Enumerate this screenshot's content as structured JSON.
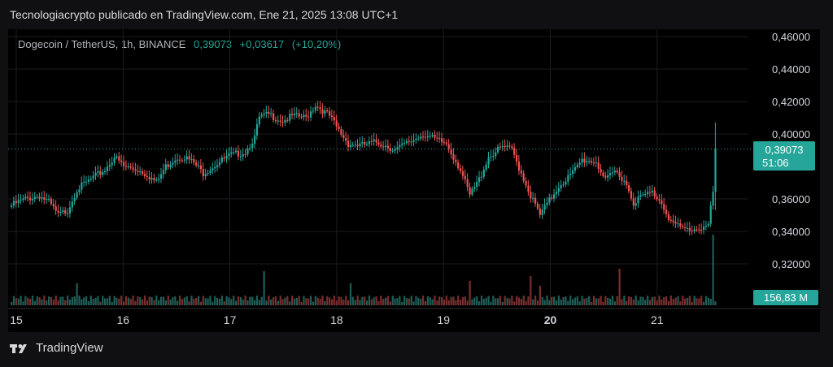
{
  "header": {
    "text": "Tecnologiacrypto publicado en TradingView.com, Ene 21, 2025 13:08 UTC+1"
  },
  "legend": {
    "pair": "Dogecoin / TetherUS, 1h, BINANCE",
    "price": "0,39073",
    "change": "+0,03617",
    "change_pct": "(+10,20%)"
  },
  "price_tag": {
    "value": "0,39073",
    "countdown": "51:06"
  },
  "volume_tag": {
    "value": "156,83 M"
  },
  "footer": {
    "brand": "TradingView"
  },
  "colors": {
    "up": "#26a69a",
    "down": "#ef5350",
    "up_volume": "#1f5e57",
    "down_volume": "#7a2e2e"
  },
  "chart_data": {
    "type": "candlestick",
    "y_axis_ticks": [
      "0,46000",
      "0,44000",
      "0,42000",
      "0,40000",
      "0,36000",
      "0,34000",
      "0,32000"
    ],
    "x_axis_ticks": [
      "15",
      "16",
      "17",
      "18",
      "19",
      "20",
      "21"
    ],
    "ylim": [
      0.3,
      0.465
    ],
    "current_price": 0.39073,
    "last_volume": "156,83 M",
    "anchors": [
      [
        0,
        0.356
      ],
      [
        6,
        0.36
      ],
      [
        12,
        0.362
      ],
      [
        16,
        0.358
      ],
      [
        20,
        0.35
      ],
      [
        24,
        0.353
      ],
      [
        28,
        0.366
      ],
      [
        34,
        0.372
      ],
      [
        40,
        0.378
      ],
      [
        44,
        0.386
      ],
      [
        48,
        0.38
      ],
      [
        54,
        0.378
      ],
      [
        58,
        0.375
      ],
      [
        62,
        0.37
      ],
      [
        66,
        0.38
      ],
      [
        70,
        0.385
      ],
      [
        74,
        0.386
      ],
      [
        78,
        0.382
      ],
      [
        82,
        0.376
      ],
      [
        88,
        0.382
      ],
      [
        94,
        0.387
      ],
      [
        100,
        0.389
      ],
      [
        104,
        0.398
      ],
      [
        106,
        0.41
      ],
      [
        110,
        0.412
      ],
      [
        116,
        0.408
      ],
      [
        120,
        0.411
      ],
      [
        126,
        0.41
      ],
      [
        130,
        0.418
      ],
      [
        136,
        0.411
      ],
      [
        140,
        0.402
      ],
      [
        144,
        0.394
      ],
      [
        150,
        0.393
      ],
      [
        156,
        0.395
      ],
      [
        160,
        0.393
      ],
      [
        164,
        0.39
      ],
      [
        170,
        0.395
      ],
      [
        176,
        0.4
      ],
      [
        182,
        0.396
      ],
      [
        186,
        0.394
      ],
      [
        192,
        0.378
      ],
      [
        196,
        0.362
      ],
      [
        200,
        0.372
      ],
      [
        204,
        0.386
      ],
      [
        210,
        0.392
      ],
      [
        214,
        0.39
      ],
      [
        218,
        0.376
      ],
      [
        222,
        0.362
      ],
      [
        226,
        0.35
      ],
      [
        230,
        0.359
      ],
      [
        234,
        0.368
      ],
      [
        240,
        0.376
      ],
      [
        244,
        0.384
      ],
      [
        250,
        0.383
      ],
      [
        254,
        0.371
      ],
      [
        258,
        0.377
      ],
      [
        262,
        0.372
      ],
      [
        266,
        0.358
      ],
      [
        270,
        0.362
      ],
      [
        274,
        0.364
      ],
      [
        278,
        0.358
      ],
      [
        282,
        0.346
      ],
      [
        286,
        0.342
      ],
      [
        290,
        0.341
      ],
      [
        294,
        0.342
      ],
      [
        298,
        0.344
      ],
      [
        300,
        0.364
      ],
      [
        301,
        0.391
      ]
    ],
    "volumes_tall": {
      "28": 9,
      "108": 14,
      "145": 9,
      "196": 10,
      "222": 12,
      "226": 8,
      "260": 15,
      "300": 29
    }
  }
}
